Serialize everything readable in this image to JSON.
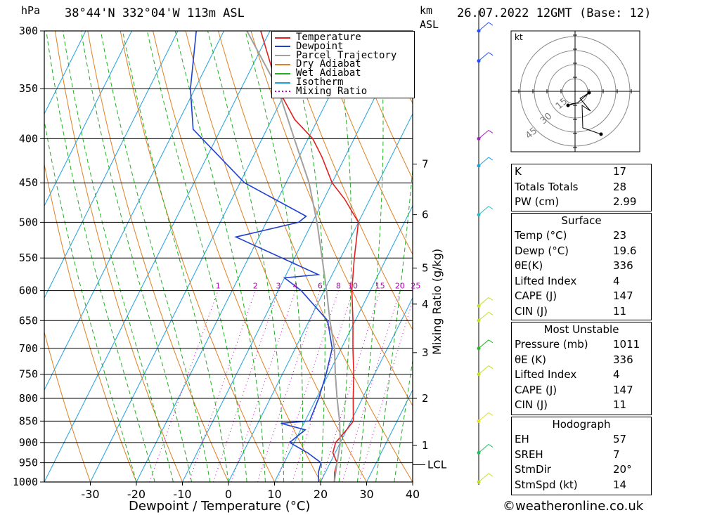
{
  "header": {
    "units_left": "hPa",
    "location": "38°44'N  332°04'W  113m  ASL",
    "units_km": "km",
    "units_asl": "ASL",
    "datetime": "26.07.2022  12GMT  (Base: 12)"
  },
  "chart_data": {
    "type": "line",
    "title": "",
    "xlabel": "Dewpoint / Temperature (°C)",
    "ylabel": "hPa",
    "y2label": "Mixing Ratio (g/kg)",
    "xlim": [
      -40,
      40
    ],
    "ylim": [
      1000,
      300
    ],
    "y_scale": "log",
    "x_ticks": [
      -30,
      -20,
      -10,
      0,
      10,
      20,
      30,
      40
    ],
    "pressure_levels": [
      300,
      350,
      400,
      450,
      500,
      550,
      600,
      650,
      700,
      750,
      800,
      850,
      900,
      950,
      1000
    ],
    "km_ticks": [
      {
        "km": "1",
        "p": 907
      },
      {
        "km": "2",
        "p": 800
      },
      {
        "km": "3",
        "p": 708
      },
      {
        "km": "4",
        "p": 622
      },
      {
        "km": "5",
        "p": 565
      },
      {
        "km": "6",
        "p": 490
      },
      {
        "km": "7",
        "p": 428
      }
    ],
    "lcl_label": "LCL",
    "lcl_p": 955,
    "mixing_ratio_labels": [
      "1",
      "2",
      "3",
      "4",
      "6",
      "8",
      "10",
      "15",
      "20",
      "25"
    ],
    "legend": [
      "Temperature",
      "Dewpoint",
      "Parcel Trajectory",
      "Dry Adiabat",
      "Wet Adiabat",
      "Isotherm",
      "Mixing Ratio"
    ],
    "legend_placement": "top-center",
    "series": [
      {
        "name": "Temperature",
        "color": "#e02020",
        "points": [
          [
            23,
            1000
          ],
          [
            22,
            975
          ],
          [
            21.5,
            950
          ],
          [
            19.5,
            925
          ],
          [
            19,
            900
          ],
          [
            20,
            870
          ],
          [
            20.5,
            850
          ],
          [
            18,
            800
          ],
          [
            15.5,
            750
          ],
          [
            12.5,
            700
          ],
          [
            9.5,
            650
          ],
          [
            6,
            600
          ],
          [
            3,
            550
          ],
          [
            0,
            500
          ],
          [
            -5.5,
            470
          ],
          [
            -10,
            450
          ],
          [
            -15,
            420
          ],
          [
            -19,
            400
          ],
          [
            -25,
            380
          ],
          [
            -32,
            350
          ],
          [
            -42,
            300
          ]
        ]
      },
      {
        "name": "Dewpoint",
        "color": "#2040d0",
        "points": [
          [
            19.6,
            1000
          ],
          [
            18.5,
            975
          ],
          [
            18,
            950
          ],
          [
            14,
            925
          ],
          [
            9,
            900
          ],
          [
            11,
            870
          ],
          [
            5,
            855
          ],
          [
            11,
            850
          ],
          [
            10.5,
            800
          ],
          [
            9.5,
            750
          ],
          [
            8,
            700
          ],
          [
            4,
            650
          ],
          [
            -5,
            600
          ],
          [
            -10,
            580
          ],
          [
            -3,
            575
          ],
          [
            -25,
            520
          ],
          [
            -13,
            500
          ],
          [
            -12,
            492
          ],
          [
            -29,
            450
          ],
          [
            -43,
            400
          ],
          [
            -46,
            390
          ],
          [
            -51,
            350
          ],
          [
            -56,
            300
          ]
        ]
      },
      {
        "name": "Parcel Trajectory",
        "color": "#a0a0a0",
        "points": [
          [
            23,
            1000
          ],
          [
            21.5,
            950
          ],
          [
            20,
            900
          ],
          [
            17.5,
            850
          ],
          [
            14.5,
            800
          ],
          [
            11.5,
            750
          ],
          [
            8.5,
            700
          ],
          [
            4.5,
            650
          ],
          [
            0.5,
            600
          ],
          [
            -4,
            550
          ],
          [
            -9,
            500
          ],
          [
            -15,
            450
          ],
          [
            -23,
            400
          ],
          [
            -32,
            350
          ],
          [
            -45,
            300
          ]
        ]
      }
    ],
    "colors": {
      "dry_adiabat": "#e08020",
      "wet_adiabat": "#20b020",
      "isotherm": "#20a0e0",
      "mixing_ratio": "#c000c0",
      "grid": "#000000"
    }
  },
  "wind_profile": {
    "points": [
      {
        "p": 300,
        "color": "#2050ff"
      },
      {
        "p": 325,
        "color": "#2050ff"
      },
      {
        "p": 400,
        "color": "#a020c0"
      },
      {
        "p": 430,
        "color": "#20a0e0"
      },
      {
        "p": 490,
        "color": "#20c0c0"
      },
      {
        "p": 625,
        "color": "#c0e020"
      },
      {
        "p": 650,
        "color": "#c0e020"
      },
      {
        "p": 700,
        "color": "#20c020"
      },
      {
        "p": 750,
        "color": "#c0e020"
      },
      {
        "p": 850,
        "color": "#e0e020"
      },
      {
        "p": 925,
        "color": "#20c060"
      },
      {
        "p": 1000,
        "color": "#c0e020"
      }
    ]
  },
  "hodograph": {
    "unit": "kt",
    "ring_labels": [
      "15",
      "30",
      "45"
    ]
  },
  "indices": [
    {
      "label": "K",
      "value": "17"
    },
    {
      "label": "Totals Totals",
      "value": "28"
    },
    {
      "label": "PW (cm)",
      "value": "2.99"
    }
  ],
  "surface": {
    "title": "Surface",
    "rows": [
      {
        "label": "Temp (°C)",
        "value": "23"
      },
      {
        "label": "Dewp (°C)",
        "value": "19.6"
      },
      {
        "label": "θE(K)",
        "value": "336"
      },
      {
        "label": "Lifted Index",
        "value": "4"
      },
      {
        "label": "CAPE (J)",
        "value": "147"
      },
      {
        "label": "CIN (J)",
        "value": "11"
      }
    ]
  },
  "most_unstable": {
    "title": "Most Unstable",
    "rows": [
      {
        "label": "Pressure (mb)",
        "value": "1011"
      },
      {
        "label": "θE (K)",
        "value": "336"
      },
      {
        "label": "Lifted Index",
        "value": "4"
      },
      {
        "label": "CAPE (J)",
        "value": "147"
      },
      {
        "label": "CIN (J)",
        "value": "11"
      }
    ]
  },
  "hodograph_stats": {
    "title": "Hodograph",
    "rows": [
      {
        "label": "EH",
        "value": "57"
      },
      {
        "label": "SREH",
        "value": "7"
      },
      {
        "label": "StmDir",
        "value": "20°"
      },
      {
        "label": "StmSpd (kt)",
        "value": "14"
      }
    ]
  },
  "footer": {
    "copyright": "©weatheronline.co.uk"
  }
}
